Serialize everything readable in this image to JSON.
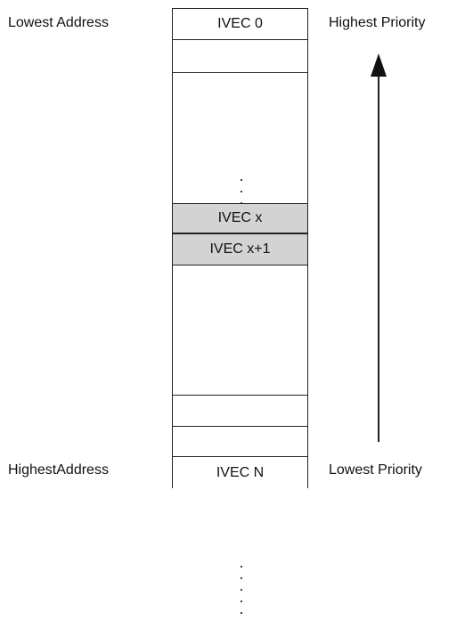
{
  "labels": {
    "lowest_address": "Lowest Address",
    "highest_priority": "Highest Priority",
    "highest_address": "HighestAddress",
    "lowest_priority": "Lowest Priority"
  },
  "vectors": {
    "first": "IVEC 0",
    "x": "IVEC x",
    "x_plus_1": "IVEC x+1",
    "last": "IVEC N"
  },
  "colors": {
    "highlight": "#d3d3d3",
    "stroke": "#222222"
  }
}
